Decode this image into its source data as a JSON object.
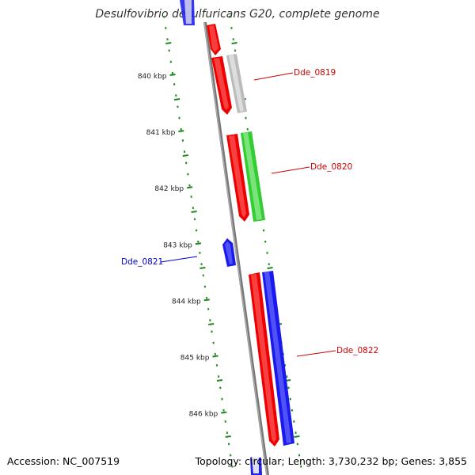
{
  "title": "Desulfovibrio desulfuricans G20, complete genome",
  "footer": {
    "accession": "Accession: NC_007519",
    "summary": "Topology: circular; Length: 3,730,232 bp; Genes: 3,855"
  },
  "ticks": [
    "840 kbp",
    "841 kbp",
    "842 kbp",
    "843 kbp",
    "844 kbp",
    "845 kbp",
    "846 kbp"
  ],
  "gene_labels": [
    {
      "name": "Dde_0819",
      "color": "#cc0000"
    },
    {
      "name": "Dde_0820",
      "color": "#cc0000"
    },
    {
      "name": "Dde_0821",
      "color": "#0000cc"
    },
    {
      "name": "Dde_0822",
      "color": "#cc0000"
    }
  ],
  "colors": {
    "cds": "#ee0000",
    "forward": "#1a1aee",
    "green": "#33cc33",
    "gray": "#bbbbbb",
    "backbone": "#888888",
    "tick_marks": "#228822"
  }
}
